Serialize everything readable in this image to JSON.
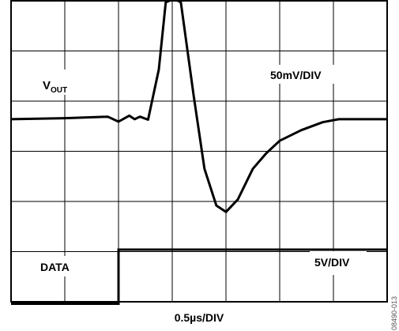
{
  "chart_data": {
    "type": "line",
    "grid": true,
    "x_divisions": 7,
    "y_divisions": 6,
    "xlabel": "0.5µs/DIV",
    "figure_id": "08490-013",
    "channels": {
      "vout": {
        "label_main": "V",
        "label_sub": "OUT",
        "scale": "50mV/DIV",
        "points_div": [
          [
            0.0,
            3.64
          ],
          [
            1.0,
            3.66
          ],
          [
            1.8,
            3.69
          ],
          [
            2.0,
            3.59
          ],
          [
            2.1,
            3.65
          ],
          [
            2.2,
            3.71
          ],
          [
            2.3,
            3.64
          ],
          [
            2.4,
            3.69
          ],
          [
            2.55,
            3.63
          ],
          [
            2.75,
            4.63
          ],
          [
            2.88,
            5.97
          ],
          [
            3.04,
            6.04
          ],
          [
            3.16,
            5.97
          ],
          [
            3.4,
            4.1
          ],
          [
            3.6,
            2.65
          ],
          [
            3.82,
            1.92
          ],
          [
            4.0,
            1.79
          ],
          [
            4.22,
            2.04
          ],
          [
            4.5,
            2.65
          ],
          [
            4.75,
            2.96
          ],
          [
            5.0,
            3.21
          ],
          [
            5.4,
            3.42
          ],
          [
            5.8,
            3.58
          ],
          [
            6.1,
            3.64
          ],
          [
            7.0,
            3.64
          ]
        ]
      },
      "data": {
        "label": "DATA",
        "scale": "5V/DIV",
        "low_level_div": -0.04,
        "high_level_div": 1.04,
        "edge_div": 2.0
      }
    }
  }
}
